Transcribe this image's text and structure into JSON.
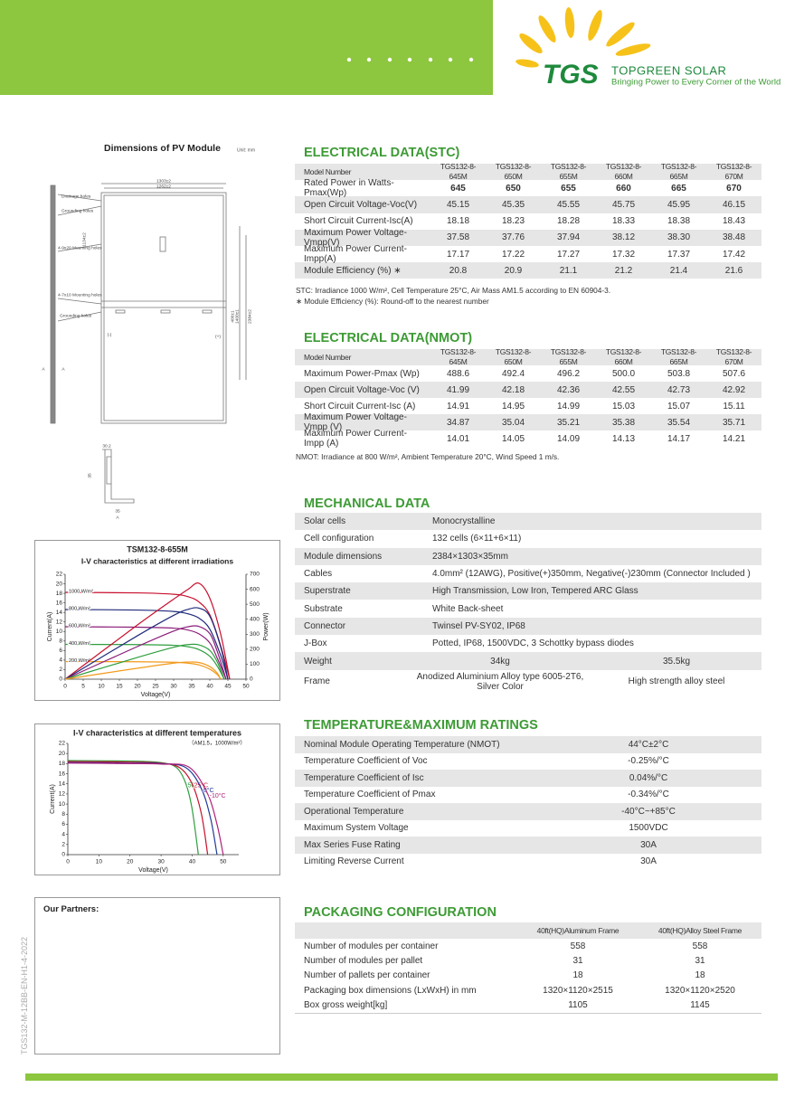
{
  "header": {
    "logo": "TGS",
    "brand": "TOPGREEN SOLAR",
    "tagline": "Bringing Power to Every Corner of the World"
  },
  "dimensions": {
    "title": "Dimensions of PV Module",
    "unit": "Unit: mm",
    "labels": [
      "1303±2",
      "1262±2",
      "Drainage holes",
      "Grounding holes",
      "4-9x20 Mounting holes",
      "4-7x10 Mounting holes",
      "Grounding holes",
      "1134±2",
      "400±1",
      "1400±1",
      "2384±2",
      "(-)",
      "(+)",
      "A",
      "A",
      "30.2",
      "35",
      "35",
      "A"
    ]
  },
  "chart_data": [
    {
      "type": "line",
      "title": "TSM132-8-655M",
      "subtitle": "I-V characteristics at different irradiations",
      "xlabel": "Voltage(V)",
      "ylabel": "Current(A)",
      "y2label": "Power(W)",
      "xlim": [
        0,
        50
      ],
      "xticks": [
        0,
        5,
        10,
        15,
        20,
        25,
        30,
        35,
        40,
        45,
        50
      ],
      "ylim": [
        0,
        22
      ],
      "yticks": [
        0,
        2,
        4,
        6,
        8,
        10,
        12,
        14,
        16,
        18,
        20,
        22
      ],
      "y2lim": [
        0,
        700
      ],
      "y2ticks": [
        0,
        100,
        200,
        300,
        400,
        500,
        600,
        700
      ],
      "series": [
        {
          "name": "1000 W/m²",
          "color": "#c8102e",
          "x": [
            0,
            20,
            30,
            34,
            37,
            40,
            43,
            45.5
          ],
          "values": [
            18.2,
            18.1,
            17.8,
            17.3,
            16.2,
            13.5,
            7,
            0
          ]
        },
        {
          "name": "800 W/m²",
          "color": "#1f2a7a",
          "x": [
            0,
            20,
            30,
            34,
            37,
            40,
            43,
            45
          ],
          "values": [
            14.6,
            14.5,
            14.2,
            13.7,
            12.8,
            10.5,
            5,
            0
          ]
        },
        {
          "name": "600 W/m²",
          "color": "#8b1c7a",
          "x": [
            0,
            20,
            30,
            34,
            37,
            40,
            42,
            44.5
          ],
          "values": [
            11,
            10.9,
            10.7,
            10.3,
            9.5,
            7.6,
            4.5,
            0
          ]
        },
        {
          "name": "400 W/m²",
          "color": "#2e9e3e",
          "x": [
            0,
            20,
            30,
            34,
            37,
            40,
            42,
            44
          ],
          "values": [
            7.3,
            7.25,
            7.1,
            6.8,
            6.2,
            4.8,
            2.8,
            0
          ]
        },
        {
          "name": "200 W/m²",
          "color": "#f29a1a",
          "x": [
            0,
            20,
            30,
            34,
            37,
            40,
            42,
            43
          ],
          "values": [
            3.7,
            3.65,
            3.55,
            3.35,
            3,
            2.1,
            1,
            0
          ]
        },
        {
          "color": "#c8102e",
          "axis": "y2",
          "x": [
            0,
            20,
            30,
            34,
            37,
            40,
            43,
            45.5
          ],
          "values": [
            0,
            362,
            534,
            600,
            640,
            540,
            301,
            0
          ]
        },
        {
          "color": "#1f2a7a",
          "axis": "y2",
          "x": [
            0,
            20,
            30,
            34,
            37,
            40,
            43,
            45
          ],
          "values": [
            0,
            290,
            426,
            466,
            474,
            420,
            215,
            0
          ]
        },
        {
          "color": "#8b1c7a",
          "axis": "y2",
          "x": [
            0,
            20,
            30,
            34,
            37,
            40,
            42,
            44.5
          ],
          "values": [
            0,
            218,
            321,
            350,
            352,
            304,
            189,
            0
          ]
        },
        {
          "color": "#2e9e3e",
          "axis": "y2",
          "x": [
            0,
            20,
            30,
            34,
            37,
            40,
            42,
            44
          ],
          "values": [
            0,
            145,
            213,
            231,
            229,
            192,
            118,
            0
          ]
        },
        {
          "color": "#f29a1a",
          "axis": "y2",
          "x": [
            0,
            20,
            30,
            34,
            37,
            40,
            42,
            43
          ],
          "values": [
            0,
            73,
            107,
            114,
            111,
            84,
            42,
            0
          ]
        }
      ]
    },
    {
      "type": "line",
      "title": "I-V characteristics at different temperatures",
      "subtitle": "（AM1.5，1000W/m²）",
      "xlabel": "Voltage(V)",
      "ylabel": "Current(A)",
      "xlim": [
        0,
        55
      ],
      "xticks": [
        0,
        10,
        20,
        30,
        40,
        50
      ],
      "ylim": [
        0,
        22
      ],
      "yticks": [
        0,
        2,
        4,
        6,
        8,
        10,
        12,
        14,
        16,
        18,
        20,
        22
      ],
      "series": [
        {
          "name": "50°C",
          "color": "#2e9e3e",
          "x": [
            0,
            20,
            30,
            35,
            38,
            40,
            42
          ],
          "values": [
            18.6,
            18.5,
            18.2,
            17.2,
            14,
            9,
            0
          ]
        },
        {
          "name": "25°C",
          "color": "#c8102e",
          "x": [
            0,
            20,
            30,
            36,
            40,
            43,
            45
          ],
          "values": [
            18.4,
            18.3,
            18.1,
            17.2,
            14,
            8,
            0
          ]
        },
        {
          "name": "0°C",
          "color": "#1f3a9a",
          "x": [
            0,
            20,
            30,
            38,
            43,
            46,
            48
          ],
          "values": [
            18.2,
            18.1,
            18,
            17.2,
            13,
            7,
            0
          ]
        },
        {
          "name": "-10°C",
          "color": "#b0207a",
          "x": [
            0,
            20,
            30,
            39,
            45,
            48,
            50
          ],
          "values": [
            18.1,
            18,
            17.9,
            17.3,
            12,
            6,
            0
          ]
        }
      ]
    }
  ],
  "electrical_stc": {
    "title": "ELECTRICAL DATA(STC)",
    "header": [
      "Model Number",
      "TGS132-8-645M",
      "TGS132-8-650M",
      "TGS132-8-655M",
      "TGS132-8-660M",
      "TGS132-8-665M",
      "TGS132-8-670M"
    ],
    "rows": [
      [
        "Rated Power in Watts-Pmax(Wp)",
        "645",
        "650",
        "655",
        "660",
        "665",
        "670"
      ],
      [
        "Open Circuit Voltage-Voc(V)",
        "45.15",
        "45.35",
        "45.55",
        "45.75",
        "45.95",
        "46.15"
      ],
      [
        "Short Circuit Current-Isc(A)",
        "18.18",
        "18.23",
        "18.28",
        "18.33",
        "18.38",
        "18.43"
      ],
      [
        "Maximum Power Voltage-Vmpp(V)",
        "37.58",
        "37.76",
        "37.94",
        "38.12",
        "38.30",
        "38.48"
      ],
      [
        "Maximum Power Current-Impp(A)",
        "17.17",
        "17.22",
        "17.27",
        "17.32",
        "17.37",
        "17.42"
      ],
      [
        "Module Efficiency (%) ∗",
        "20.8",
        "20.9",
        "21.1",
        "21.2",
        "21.4",
        "21.6"
      ]
    ],
    "notes": [
      "STC: Irradiance 1000 W/m², Cell Temperature 25°C, Air Mass AM1.5 according to EN 60904-3.",
      "∗ Module Efficiency (%): Round-off to the nearest number"
    ]
  },
  "electrical_nmot": {
    "title": "ELECTRICAL DATA(NMOT)",
    "header": [
      "Model Number",
      "TGS132-8-645M",
      "TGS132-8-650M",
      "TGS132-8-655M",
      "TGS132-8-660M",
      "TGS132-8-665M",
      "TGS132-8-670M"
    ],
    "rows": [
      [
        "Maximum Power-Pmax (Wp)",
        "488.6",
        "492.4",
        "496.2",
        "500.0",
        "503.8",
        "507.6"
      ],
      [
        "Open Circuit Voltage-Voc (V)",
        "41.99",
        "42.18",
        "42.36",
        "42.55",
        "42.73",
        "42.92"
      ],
      [
        "Short Circuit Current-Isc (A)",
        "14.91",
        "14.95",
        "14.99",
        "15.03",
        "15.07",
        "15.11"
      ],
      [
        "Maximum Power Voltage-Vmpp (V)",
        "34.87",
        "35.04",
        "35.21",
        "35.38",
        "35.54",
        "35.71"
      ],
      [
        "Maximum Power Current-Impp (A)",
        "14.01",
        "14.05",
        "14.09",
        "14.13",
        "14.17",
        "14.21"
      ]
    ],
    "notes": [
      "NMOT: Irradiance at 800 W/m², Ambient Temperature 20°C, Wind Speed 1 m/s."
    ]
  },
  "mechanical": {
    "title": "MECHANICAL DATA",
    "rows": [
      [
        "Solar cells",
        "Monocrystalline"
      ],
      [
        "Cell configuration",
        "132 cells (6×11+6×11)"
      ],
      [
        "Module dimensions",
        "2384×1303×35mm"
      ],
      [
        "Cables",
        "4.0mm² (12AWG), Positive(+)350mm, Negative(-)230mm (Connector Included )"
      ],
      [
        "Superstrate",
        "High Transmission, Low Iron, Tempered ARC Glass"
      ],
      [
        "Substrate",
        "White Back-sheet"
      ],
      [
        "Connector",
        "Twinsel PV-SY02, IP68"
      ],
      [
        "J-Box",
        "Potted, IP68, 1500VDC, 3 Schottky bypass diodes"
      ],
      [
        "Weight",
        "34kg",
        "35.5kg"
      ],
      [
        "Frame",
        "Anodized Aluminium Alloy type 6005-2T6, Silver Color",
        "High strength alloy steel"
      ]
    ]
  },
  "temperature": {
    "title": "TEMPERATURE&MAXIMUM RATINGS",
    "rows": [
      [
        "Nominal Module Operating Temperature (NMOT)",
        "44°C±2°C"
      ],
      [
        "Temperature Coefficient of Voc",
        "-0.25%/°C"
      ],
      [
        "Temperature Coefficient of Isc",
        "0.04%/°C"
      ],
      [
        "Temperature Coefficient of Pmax",
        "-0.34%/°C"
      ],
      [
        "Operational Temperature",
        "-40°C~+85°C"
      ],
      [
        "Maximum System Voltage",
        "1500VDC"
      ],
      [
        "Max Series Fuse Rating",
        "30A"
      ],
      [
        "Limiting Reverse Current",
        "30A"
      ]
    ]
  },
  "packaging": {
    "title": "PACKAGING CONFIGURATION",
    "header": [
      "40ft(HQ)Aluminum Frame",
      "40ft(HQ)Alloy Steel Frame"
    ],
    "rows": [
      [
        "Number of modules per container",
        "558",
        "558"
      ],
      [
        "Number of modules per pallet",
        "31",
        "31"
      ],
      [
        "Number of pallets per container",
        "18",
        "18"
      ],
      [
        "Packaging box dimensions (LxWxH) in mm",
        "1320×1120×2515",
        "1320×1120×2520"
      ],
      [
        "Box gross weight[kg]",
        "1105",
        "1145"
      ]
    ]
  },
  "partners": {
    "title": "Our Partners:"
  },
  "doc_id": "TGS132-M-12BB-EN-H1-4-2022"
}
